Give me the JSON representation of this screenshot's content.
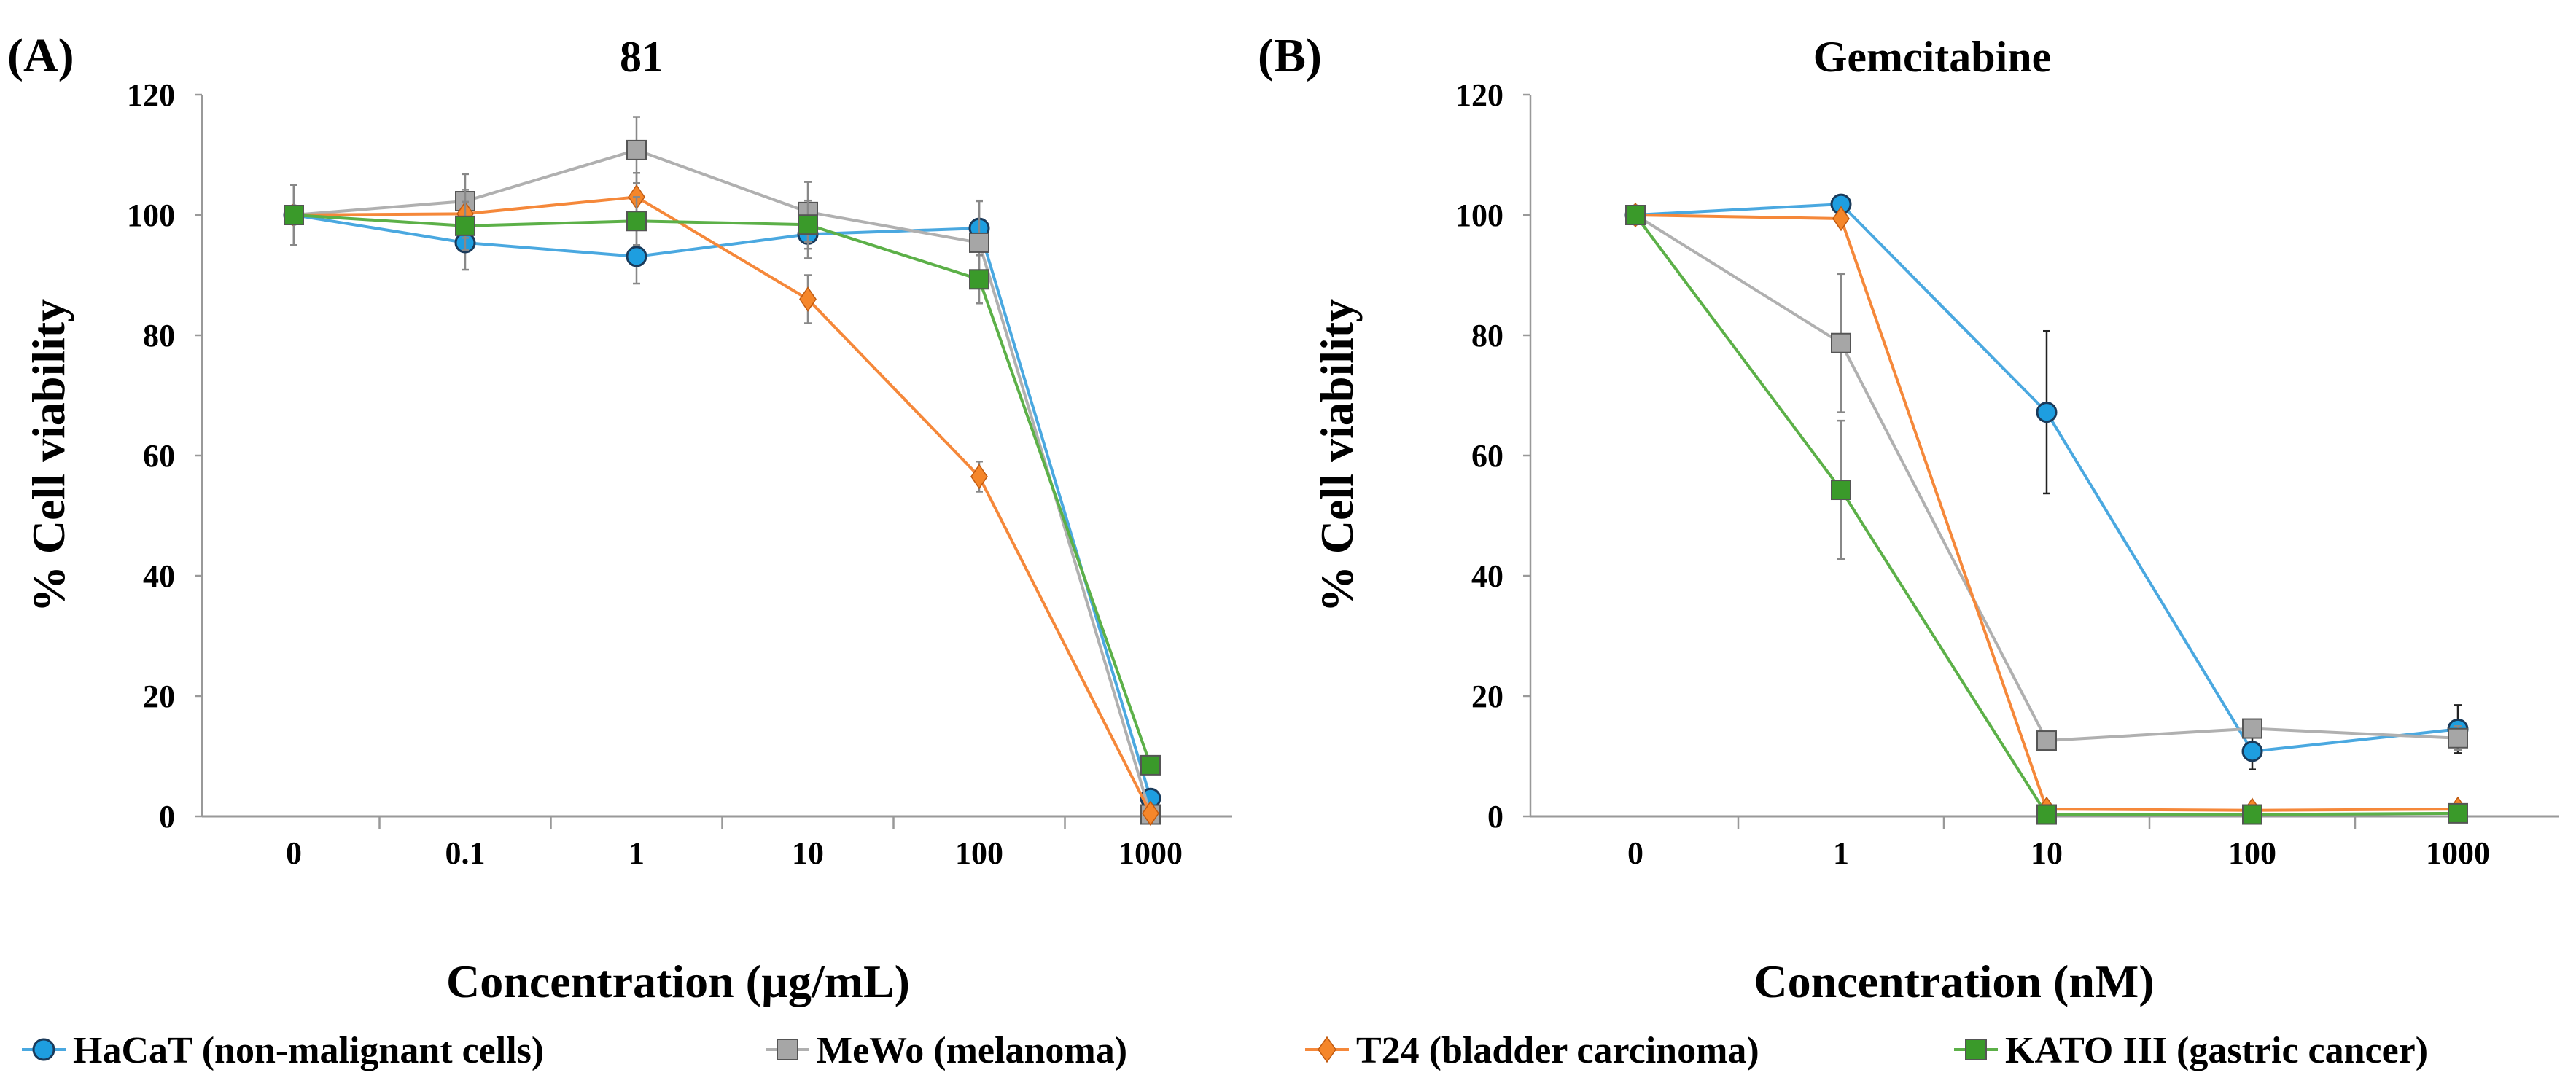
{
  "series_styles": [
    {
      "name": "HaCaT (non-malignant cells)",
      "color": "#4aa8e0",
      "fill": "#1e9ee0",
      "marker": "circle"
    },
    {
      "name": "MeWo (melanoma)",
      "color": "#b0b0b0",
      "fill": "#a6a6a6",
      "marker": "square"
    },
    {
      "name": "T24 (bladder carcinoma)",
      "color": "#f5883a",
      "fill": "#f5862a",
      "marker": "diamond"
    },
    {
      "name": "KATO III (gastric cancer)",
      "color": "#5cb048",
      "fill": "#3a9a2a",
      "marker": "square"
    }
  ],
  "chart_data": [
    {
      "type": "line",
      "panel_label": "(A)",
      "title": "81",
      "xlabel": "Concentration (µg/mL)",
      "ylabel": "% Cell viability",
      "categories": [
        "0",
        "0.1",
        "1",
        "10",
        "100",
        "1000"
      ],
      "ylim": [
        0,
        120
      ],
      "yticks": [
        "0",
        "20",
        "40",
        "60",
        "80",
        "100",
        "120"
      ],
      "grid": false,
      "legend": "bottom",
      "series": [
        {
          "name": "HaCaT (non-malignant cells)",
          "values": [
            100,
            95.4,
            93.1,
            96.8,
            97.8,
            3.0
          ],
          "errors": [
            5,
            4.5,
            4.5,
            4,
            4.5,
            0.5
          ]
        },
        {
          "name": "MeWo (melanoma)",
          "values": [
            100,
            102.3,
            110.8,
            100.5,
            95.4,
            0.3
          ],
          "errors": [
            5,
            4.5,
            5.5,
            5,
            7,
            0.3
          ]
        },
        {
          "name": "T24 (bladder carcinoma)",
          "values": [
            100,
            100.2,
            103.0,
            86.0,
            56.5,
            0.5
          ],
          "errors": [
            5,
            4,
            4,
            4,
            2.5,
            0.3
          ]
        },
        {
          "name": "KATO III (gastric cancer)",
          "values": [
            100,
            98.2,
            99.0,
            98.4,
            89.3,
            8.5
          ],
          "errors": [
            5,
            4,
            4,
            4,
            4,
            0.5
          ]
        }
      ]
    },
    {
      "type": "line",
      "panel_label": "(B)",
      "title": "Gemcitabine",
      "xlabel": "Concentration (nM)",
      "ylabel": "% Cell viability",
      "categories": [
        "0",
        "1",
        "10",
        "100",
        "1000"
      ],
      "ylim": [
        0,
        120
      ],
      "yticks": [
        "0",
        "20",
        "40",
        "60",
        "80",
        "100",
        "120"
      ],
      "grid": false,
      "legend": "bottom",
      "series": [
        {
          "name": "HaCaT (non-malignant cells)",
          "values": [
            100,
            101.8,
            67.2,
            10.8,
            14.5
          ],
          "errors": [
            0.5,
            0.8,
            13.5,
            3,
            4
          ]
        },
        {
          "name": "MeWo (melanoma)",
          "values": [
            100,
            78.7,
            12.6,
            14.6,
            13.0
          ],
          "errors": [
            0.5,
            11.5,
            0.8,
            1,
            2
          ]
        },
        {
          "name": "T24 (bladder carcinoma)",
          "values": [
            100,
            99.4,
            1.2,
            1.0,
            1.2
          ],
          "errors": [
            0.5,
            0.8,
            0.5,
            0.5,
            0.5
          ]
        },
        {
          "name": "KATO III (gastric cancer)",
          "values": [
            100,
            54.3,
            0.3,
            0.3,
            0.5
          ],
          "errors": [
            0.5,
            11.5,
            0.3,
            0.3,
            0.3
          ]
        }
      ]
    }
  ]
}
